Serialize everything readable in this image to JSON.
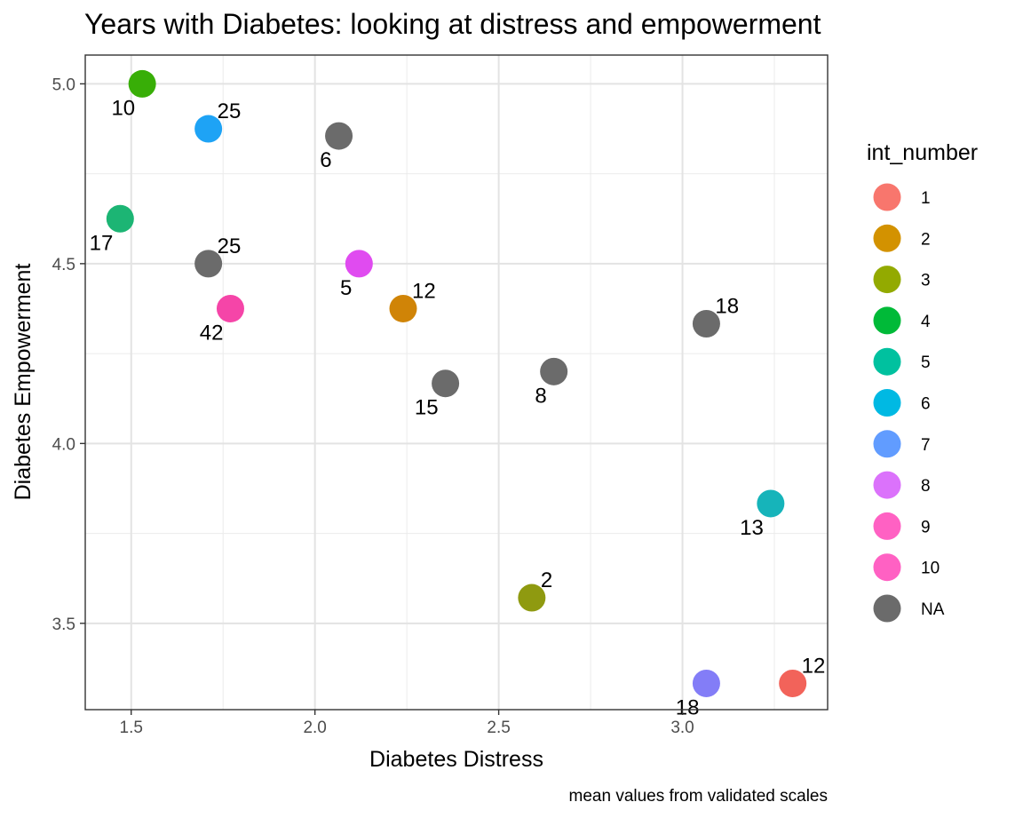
{
  "chart_data": {
    "type": "scatter",
    "title": "Years with Diabetes: looking at distress and empowerment",
    "xlabel": "Diabetes Distress",
    "ylabel": "Diabetes Empowerment",
    "caption": "mean values from validated scales",
    "xlim": [
      1.375,
      3.395
    ],
    "ylim": [
      3.26,
      5.08
    ],
    "x_ticks": [
      1.5,
      2.0,
      2.5,
      3.0
    ],
    "x_tick_labels": [
      "1.5",
      "2.0",
      "2.5",
      "3.0"
    ],
    "y_ticks": [
      3.5,
      4.0,
      4.5,
      5.0
    ],
    "y_tick_labels": [
      "3.5",
      "4.0",
      "4.5",
      "5.0"
    ],
    "grid": true,
    "legend": {
      "title": "int_number",
      "placement": "right",
      "items": [
        {
          "label": "1",
          "color": "#F8766D"
        },
        {
          "label": "2",
          "color": "#D39200"
        },
        {
          "label": "3",
          "color": "#93AA00"
        },
        {
          "label": "4",
          "color": "#00BA38"
        },
        {
          "label": "5",
          "color": "#00C19F"
        },
        {
          "label": "6",
          "color": "#00B9E3"
        },
        {
          "label": "7",
          "color": "#619CFF"
        },
        {
          "label": "8",
          "color": "#DB72FB"
        },
        {
          "label": "9",
          "color": "#FF61C3"
        },
        {
          "label": "10",
          "color": "#FF61C3"
        },
        {
          "label": "NA",
          "color": "#6B6B6B"
        }
      ]
    },
    "points": [
      {
        "x": 1.53,
        "y": 5.0,
        "label": "10",
        "group": "4",
        "color": "#38AE07",
        "label_pos": "below-left"
      },
      {
        "x": 1.71,
        "y": 4.875,
        "label": "25",
        "group": "7",
        "color": "#1EA3F5",
        "label_pos": "above-right"
      },
      {
        "x": 2.065,
        "y": 4.855,
        "label": "6",
        "group": "NA",
        "color": "#6B6B6B",
        "label_pos": "below-left"
      },
      {
        "x": 1.47,
        "y": 4.625,
        "label": "17",
        "group": "5",
        "color": "#1CB574",
        "label_pos": "below-left"
      },
      {
        "x": 1.71,
        "y": 4.5,
        "label": "25",
        "group": "NA",
        "color": "#6B6B6B",
        "label_pos": "above-right"
      },
      {
        "x": 2.12,
        "y": 4.5,
        "label": "5",
        "group": "9",
        "color": "#E04BF0",
        "label_pos": "below-left"
      },
      {
        "x": 1.77,
        "y": 4.375,
        "label": "42",
        "group": "10",
        "color": "#F545A8",
        "label_pos": "below-left"
      },
      {
        "x": 2.24,
        "y": 4.375,
        "label": "12",
        "group": "2",
        "color": "#D08407",
        "label_pos": "above-right"
      },
      {
        "x": 3.065,
        "y": 4.333,
        "label": "18",
        "group": "NA",
        "color": "#6B6B6B",
        "label_pos": "above-right"
      },
      {
        "x": 2.355,
        "y": 4.167,
        "label": "15",
        "group": "NA",
        "color": "#6B6B6B",
        "label_pos": "below-left"
      },
      {
        "x": 2.65,
        "y": 4.2,
        "label": "8",
        "group": "NA",
        "color": "#6B6B6B",
        "label_pos": "below-left"
      },
      {
        "x": 3.24,
        "y": 3.833,
        "label": "13",
        "group": "6",
        "color": "#16B4BA",
        "label_pos": "below-left"
      },
      {
        "x": 2.59,
        "y": 3.571,
        "label": "2",
        "group": "3",
        "color": "#8F9A10",
        "label_pos": "above-right"
      },
      {
        "x": 3.065,
        "y": 3.333,
        "label": "18",
        "group": "8",
        "color": "#837DF7",
        "label_pos": "below-left"
      },
      {
        "x": 3.3,
        "y": 3.333,
        "label": "12",
        "group": "1",
        "color": "#F2635A",
        "label_pos": "above-right"
      }
    ]
  }
}
